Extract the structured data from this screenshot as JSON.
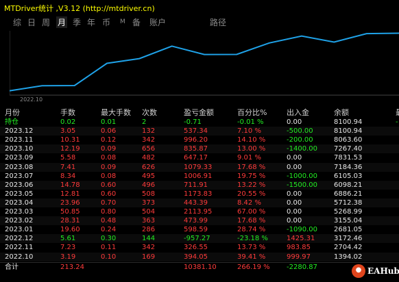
{
  "window": {
    "title": "MTDriver统计 ,V3.12 (http://mtdriver.cn)"
  },
  "tabs": [
    {
      "label": "综",
      "active": false
    },
    {
      "label": "日",
      "active": false
    },
    {
      "label": "周",
      "active": false
    },
    {
      "label": "月",
      "active": true
    },
    {
      "label": "季",
      "active": false
    },
    {
      "label": "年",
      "active": false
    },
    {
      "label": "币",
      "active": false
    },
    {
      "label": "M",
      "active": false
    },
    {
      "label": "备",
      "active": false
    },
    {
      "label": "账户",
      "active": false
    },
    {
      "label": "路径",
      "active": false
    }
  ],
  "chart": {
    "x_tick": "2022.10",
    "line_color": "#1fa2e8",
    "balance_points": [
      2681.05,
      3155.04,
      3172.46,
      5268.99,
      5712.38,
      6886.21,
      6098.21,
      6105.03,
      7184.36,
      7831.53,
      7267.4,
      8063.6,
      8100.94
    ],
    "ylim": [
      2400,
      8200
    ]
  },
  "table": {
    "headers": [
      "月份",
      "手数",
      "最大手数",
      "次数",
      "盈亏金额",
      "百分比%",
      "出入金",
      "余额",
      "最"
    ],
    "rows": [
      {
        "cells": [
          "持仓",
          "0.02",
          "0.01",
          "2",
          "-0.71",
          "-0.01 %",
          "0.00",
          "8100.94",
          "-"
        ],
        "type": "open"
      },
      {
        "cells": [
          "2023.12",
          "3.05",
          "0.06",
          "132",
          "537.34",
          "7.10 %",
          "-500.00",
          "8100.94",
          ""
        ],
        "type": "profit"
      },
      {
        "cells": [
          "2023.11",
          "10.31",
          "0.12",
          "342",
          "996.20",
          "14.10 %",
          "-200.00",
          "8063.60",
          ""
        ],
        "type": "profit"
      },
      {
        "cells": [
          "2023.10",
          "12.19",
          "0.09",
          "656",
          "835.87",
          "13.00 %",
          "-1400.00",
          "7267.40",
          ""
        ],
        "type": "profit"
      },
      {
        "cells": [
          "2023.09",
          "5.58",
          "0.08",
          "482",
          "647.17",
          "9.01 %",
          "0.00",
          "7831.53",
          ""
        ],
        "type": "profit"
      },
      {
        "cells": [
          "2023.08",
          "7.41",
          "0.09",
          "626",
          "1079.33",
          "17.68 %",
          "0.00",
          "7184.36",
          ""
        ],
        "type": "profit"
      },
      {
        "cells": [
          "2023.07",
          "8.34",
          "0.08",
          "495",
          "1006.91",
          "19.75 %",
          "-1000.00",
          "6105.03",
          ""
        ],
        "type": "profit"
      },
      {
        "cells": [
          "2023.06",
          "14.78",
          "0.60",
          "496",
          "711.91",
          "13.22 %",
          "-1500.00",
          "6098.21",
          ""
        ],
        "type": "profit"
      },
      {
        "cells": [
          "2023.05",
          "12.81",
          "0.60",
          "508",
          "1173.83",
          "20.55 %",
          "0.00",
          "6886.21",
          ""
        ],
        "type": "profit"
      },
      {
        "cells": [
          "2023.04",
          "23.96",
          "0.70",
          "373",
          "443.39",
          "8.42 %",
          "0.00",
          "5712.38",
          ""
        ],
        "type": "profit"
      },
      {
        "cells": [
          "2023.03",
          "50.85",
          "0.80",
          "504",
          "2113.95",
          "67.00 %",
          "0.00",
          "5268.99",
          ""
        ],
        "type": "profit"
      },
      {
        "cells": [
          "2023.02",
          "28.31",
          "0.48",
          "363",
          "473.99",
          "17.68 %",
          "0.00",
          "3155.04",
          ""
        ],
        "type": "profit"
      },
      {
        "cells": [
          "2023.01",
          "19.60",
          "0.24",
          "286",
          "598.59",
          "28.74 %",
          "-1090.00",
          "2681.05",
          ""
        ],
        "type": "profit"
      },
      {
        "cells": [
          "2022.12",
          "5.61",
          "0.30",
          "144",
          "-957.27",
          "-23.18 %",
          "1425.31",
          "3172.46",
          ""
        ],
        "type": "loss"
      },
      {
        "cells": [
          "2022.11",
          "7.23",
          "0.11",
          "342",
          "326.55",
          "13.73 %",
          "983.85",
          "2704.42",
          ""
        ],
        "type": "profit"
      },
      {
        "cells": [
          "2022.10",
          "3.19",
          "0.10",
          "169",
          "394.05",
          "39.41 %",
          "999.97",
          "1394.02",
          ""
        ],
        "type": "profit"
      }
    ],
    "total": {
      "cells": [
        "合计",
        "213.24",
        "",
        "",
        "10381.10",
        "266.19 %",
        "-2280.87",
        "",
        ""
      ]
    }
  },
  "colors": {
    "profit": "#ff3b3b",
    "loss": "#22ee22",
    "neutral": "#e8e8e8",
    "header": "#d0d0d0",
    "title": "#ffff00"
  },
  "watermark": {
    "text": "EAHub",
    "icon": "eahub-logo-icon"
  }
}
